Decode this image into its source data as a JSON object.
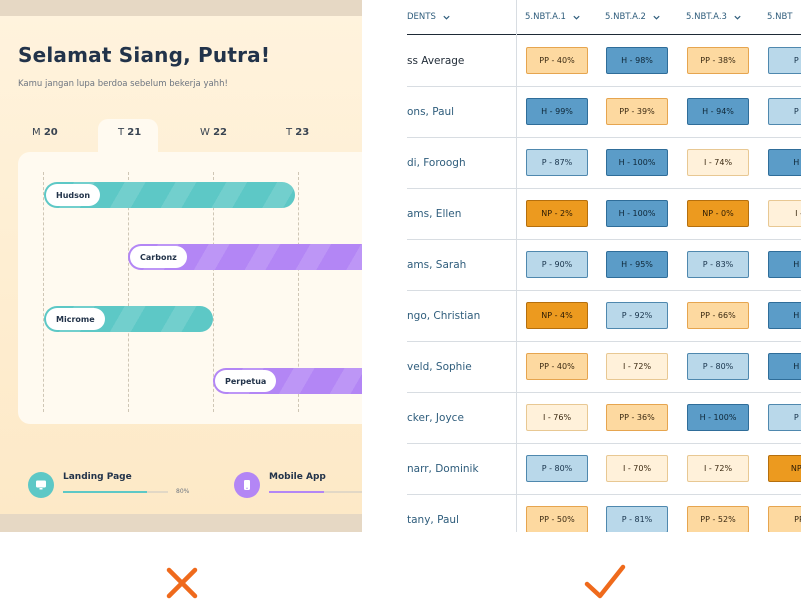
{
  "left": {
    "greeting": "Selamat Siang, Putra!",
    "subtitle": "Kamu jangan lupa berdoa sebelum bekerja yahh!",
    "days": [
      {
        "letter": "M",
        "num": "20"
      },
      {
        "letter": "T",
        "num": "21"
      },
      {
        "letter": "W",
        "num": "22"
      },
      {
        "letter": "T",
        "num": "23"
      }
    ],
    "active_day_index": 1,
    "tasks": [
      {
        "label": "Hudson",
        "color": "teal"
      },
      {
        "label": "Carbonz",
        "color": "purple"
      },
      {
        "label": "Microme",
        "color": "teal"
      },
      {
        "label": "Perpetua",
        "color": "purple"
      }
    ],
    "projects": [
      {
        "title": "Landing Page",
        "progress_percent": 80,
        "percent_label": "80%",
        "icon": "monitor-icon",
        "color": "#5dc8c6"
      },
      {
        "title": "Mobile App",
        "progress_percent": 55,
        "icon": "phone-icon",
        "color": "#b386f5"
      }
    ]
  },
  "right": {
    "columns": [
      "DENTS",
      "5.NBT.A.1",
      "5.NBT.A.2",
      "5.NBT.A.3",
      "5.NBT"
    ],
    "rows": [
      {
        "name": "ss Average",
        "avg": true,
        "cells": [
          [
            "PP",
            "PP - 40%"
          ],
          [
            "H",
            "H - 98%"
          ],
          [
            "PP",
            "PP - 38%"
          ],
          [
            "P",
            "P -"
          ]
        ]
      },
      {
        "name": "ons, Paul",
        "cells": [
          [
            "H",
            "H - 99%"
          ],
          [
            "PP",
            "PP - 39%"
          ],
          [
            "H",
            "H - 94%"
          ],
          [
            "P",
            "P -"
          ]
        ]
      },
      {
        "name": "di, Foroogh",
        "cells": [
          [
            "P",
            "P - 87%"
          ],
          [
            "H",
            "H - 100%"
          ],
          [
            "I",
            "I - 74%"
          ],
          [
            "H",
            "H -"
          ]
        ]
      },
      {
        "name": "ams, Ellen",
        "cells": [
          [
            "NP",
            "NP - 2%"
          ],
          [
            "H",
            "H - 100%"
          ],
          [
            "NP",
            "NP - 0%"
          ],
          [
            "I",
            "I -"
          ]
        ]
      },
      {
        "name": "ams, Sarah",
        "cells": [
          [
            "P",
            "P - 90%"
          ],
          [
            "H",
            "H - 95%"
          ],
          [
            "P",
            "P - 83%"
          ],
          [
            "H",
            "H -"
          ]
        ]
      },
      {
        "name": "ngo, Christian",
        "cells": [
          [
            "NP",
            "NP - 4%"
          ],
          [
            "P",
            "P - 92%"
          ],
          [
            "PP",
            "PP - 66%"
          ],
          [
            "H",
            "H -"
          ]
        ]
      },
      {
        "name": "veld, Sophie",
        "cells": [
          [
            "PP",
            "PP - 40%"
          ],
          [
            "I",
            "I - 72%"
          ],
          [
            "P",
            "P - 80%"
          ],
          [
            "H",
            "H -"
          ]
        ]
      },
      {
        "name": "cker, Joyce",
        "cells": [
          [
            "I",
            "I - 76%"
          ],
          [
            "PP",
            "PP - 36%"
          ],
          [
            "H",
            "H - 100%"
          ],
          [
            "P",
            "P -"
          ]
        ]
      },
      {
        "name": "narr, Dominik",
        "cells": [
          [
            "P",
            "P - 80%"
          ],
          [
            "I",
            "I - 70%"
          ],
          [
            "I",
            "I - 72%"
          ],
          [
            "NP",
            "NP -"
          ]
        ]
      },
      {
        "name": "tany, Paul",
        "cells": [
          [
            "PP",
            "PP - 50%"
          ],
          [
            "P",
            "P - 81%"
          ],
          [
            "PP",
            "PP - 52%"
          ],
          [
            "PP",
            "PP"
          ]
        ]
      }
    ]
  },
  "marks": {
    "bad": {
      "icon": "cross-icon",
      "color": "#ef6a1c"
    },
    "good": {
      "icon": "checkmark-icon",
      "color": "#ef6a1c"
    }
  }
}
